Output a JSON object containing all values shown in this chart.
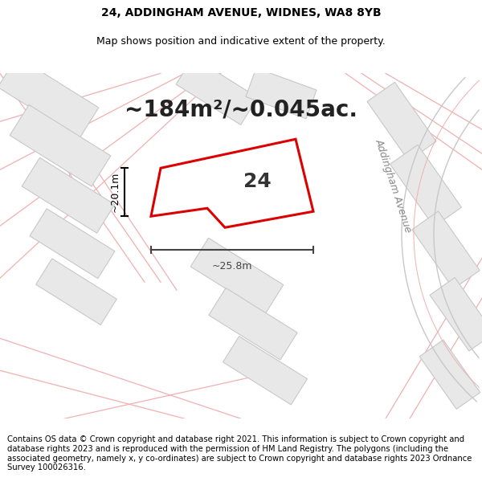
{
  "title_line1": "24, ADDINGHAM AVENUE, WIDNES, WA8 8YB",
  "title_line2": "Map shows position and indicative extent of the property.",
  "area_text": "~184m²/~0.045ac.",
  "house_number": "24",
  "dim_width": "~25.8m",
  "dim_height": "~20.1m",
  "street_label": "Addingham Avenue",
  "footer_text": "Contains OS data © Crown copyright and database right 2021. This information is subject to Crown copyright and database rights 2023 and is reproduced with the permission of HM Land Registry. The polygons (including the associated geometry, namely x, y co-ordinates) are subject to Crown copyright and database rights 2023 Ordnance Survey 100026316.",
  "map_bg": "#ffffff",
  "plot_outline_color": "#dd0000",
  "road_line_color": "#f0b0b0",
  "road_outline_color": "#c8c8c8",
  "building_fill": "#e8e8e8",
  "building_stroke": "#c8c8c8",
  "dim_line_color": "#444444",
  "vert_dim_color": "#000000",
  "title_fontsize": 10,
  "subtitle_fontsize": 9,
  "area_fontsize": 20,
  "number_fontsize": 18,
  "footer_fontsize": 7.2,
  "street_label_fontsize": 9
}
